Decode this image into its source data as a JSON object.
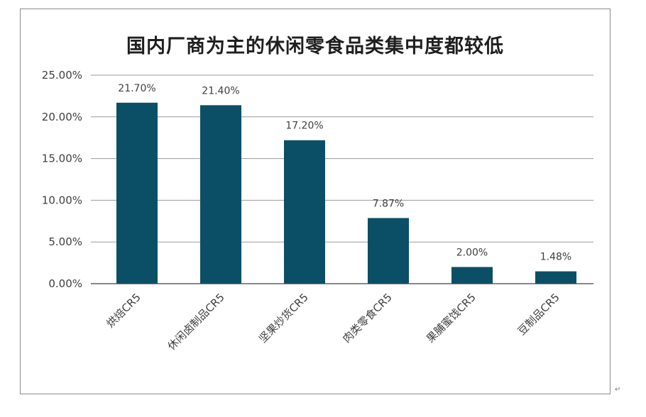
{
  "chart_data": {
    "type": "bar",
    "title": "国内厂商为主的休闲零食品类集中度都较低",
    "xlabel": "",
    "ylabel": "",
    "categories": [
      "烘焙CR5",
      "休闲卤制品CR5",
      "坚果炒货CR5",
      "肉类零食CR5",
      "果脯蜜饯CR5",
      "豆制品CR5"
    ],
    "values": [
      21.7,
      21.4,
      17.2,
      7.87,
      2.0,
      1.48
    ],
    "data_labels": [
      "21.70%",
      "21.40%",
      "17.20%",
      "7.87%",
      "2.00%",
      "1.48%"
    ],
    "ylim": [
      0,
      25
    ],
    "yticks": [
      0,
      5,
      10,
      15,
      20,
      25
    ],
    "ytick_labels": [
      "0.00%",
      "5.00%",
      "10.00%",
      "15.00%",
      "20.00%",
      "25.00%"
    ],
    "grid": true,
    "legend": "none",
    "bar_color": "#0b4f66"
  },
  "corner_mark": "↵"
}
